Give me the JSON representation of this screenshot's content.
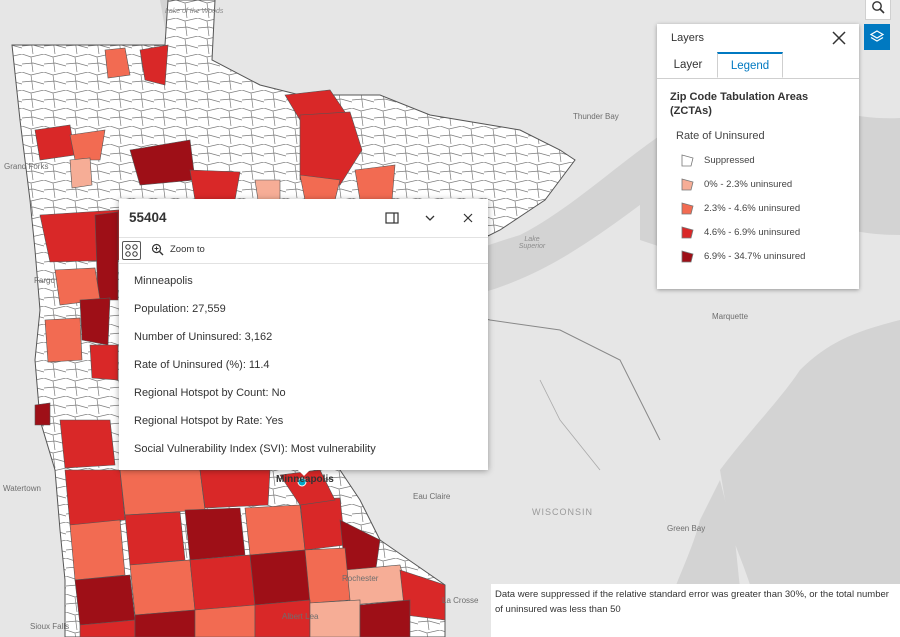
{
  "map": {
    "labels": {
      "lake_of_the_woods": "Lake of the Woods",
      "grand_forks": "Grand Forks",
      "thunder_bay": "Thunder Bay",
      "fargo": "Fargo",
      "lake_superior": "Lake Superior",
      "marquette": "Marquette",
      "watertown": "Watertown",
      "eau_claire": "Eau Claire",
      "wisconsin": "WISCONSIN",
      "green_bay": "Green Bay",
      "minneapolis": "Minneapolis",
      "rochester": "Rochester",
      "la_crosse": "La Crosse",
      "albert_lea": "Albert Lea",
      "sioux_falls": "Sioux Falls"
    }
  },
  "layers_panel": {
    "header": "Layers",
    "tab_layer": "Layer",
    "tab_legend": "Legend",
    "legend_title": "Zip Code Tabulation Areas (ZCTAs)",
    "legend_subtitle": "Rate of Uninsured",
    "legend_items": [
      {
        "label": "Suppressed",
        "color": "#ffffff"
      },
      {
        "label": "0% - 2.3% uninsured",
        "color": "#f6ad96"
      },
      {
        "label": "2.3% - 4.6% uninsured",
        "color": "#f26b52"
      },
      {
        "label": "4.6% - 6.9% uninsured",
        "color": "#d92828"
      },
      {
        "label": "6.9% - 34.7% uninsured",
        "color": "#9e0f17"
      }
    ]
  },
  "popup": {
    "title": "55404",
    "zoom_to": "Zoom to",
    "rows": [
      "Minneapolis",
      "Population: 27,559",
      "Number of Uninsured: 3,162",
      "Rate of Uninsured (%): 11.4",
      "Regional Hotspot by Count: No",
      "Regional Hotspot by Rate: Yes",
      "Social Vulnerability Index (SVI): Most vulnerability"
    ]
  },
  "footnote": "Data were suppressed if the relative standard error was greater than 30%, or the total number of uninsured was less than 50",
  "colors": {
    "accent": "#0079c1",
    "water": "#d3d3d3",
    "land": "#e6e6e6"
  }
}
